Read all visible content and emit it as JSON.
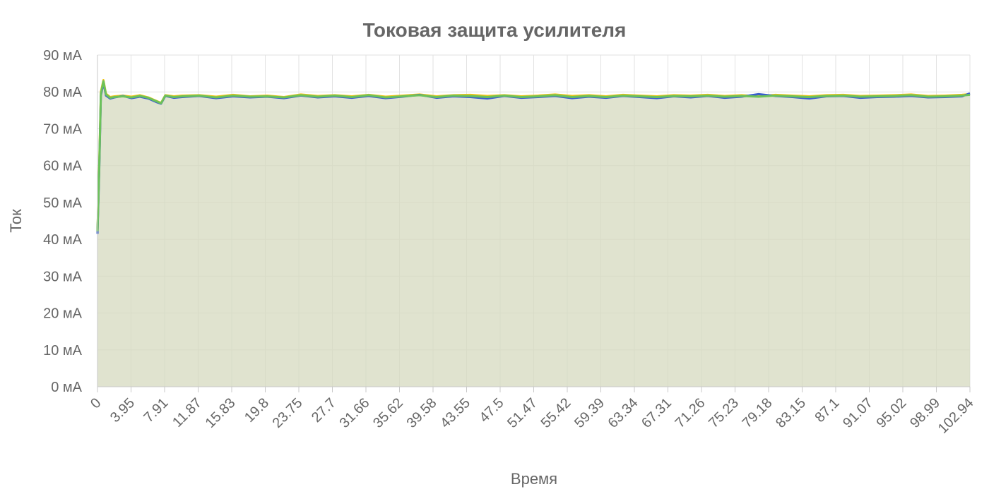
{
  "chart_data": {
    "type": "area",
    "title": "Токовая защита усилителя",
    "xlabel": "Время",
    "ylabel": "Ток",
    "y_unit_suffix": " мА",
    "ylim": [
      0,
      90
    ],
    "y_ticks": [
      0,
      10,
      20,
      30,
      40,
      50,
      60,
      70,
      80,
      90
    ],
    "xlim": [
      0,
      102.94
    ],
    "x_tick_labels": [
      "0",
      "3.95",
      "7.91",
      "11.87",
      "15.83",
      "19.8",
      "23.75",
      "27.7",
      "31.66",
      "35.62",
      "39.58",
      "43.55",
      "47.5",
      "51.47",
      "55.42",
      "59.39",
      "63.34",
      "67.31",
      "71.26",
      "75.23",
      "79.18",
      "83.15",
      "87.1",
      "91.07",
      "95.02",
      "98.99",
      "102.94"
    ],
    "grid": true,
    "legend": "none",
    "fill_color": "#d6d9bf",
    "series": [
      {
        "color": "#f2c417",
        "x": [
          0,
          0.2,
          0.4,
          0.7,
          1,
          1.5,
          2,
          3,
          4,
          5,
          6,
          7,
          7.5,
          8,
          9,
          10,
          12,
          14,
          16,
          18,
          20,
          22,
          24,
          26,
          28,
          30,
          32,
          34,
          36,
          38,
          40,
          42,
          44,
          46,
          48,
          50,
          52,
          54,
          56,
          58,
          60,
          62,
          64,
          66,
          68,
          70,
          72,
          74,
          76,
          78,
          80,
          82,
          84,
          86,
          88,
          90,
          92,
          94,
          96,
          98,
          100,
          102,
          102.94
        ],
        "values": [
          42,
          60,
          80,
          83.2,
          79.5,
          78.6,
          78.8,
          79.0,
          78.7,
          79.1,
          78.5,
          77.5,
          77.0,
          79.1,
          78.8,
          79.0,
          79.1,
          78.7,
          79.2,
          78.8,
          79.0,
          78.6,
          79.3,
          78.9,
          79.1,
          78.8,
          79.2,
          78.7,
          79.0,
          79.3,
          78.8,
          79.1,
          79.2,
          78.9,
          79.1,
          78.8,
          79.0,
          79.3,
          78.9,
          79.1,
          78.8,
          79.2,
          79.0,
          78.8,
          79.1,
          79.0,
          79.2,
          78.9,
          79.1,
          78.8,
          79.2,
          79.0,
          78.8,
          79.1,
          79.2,
          78.9,
          79.0,
          79.1,
          79.3,
          78.9,
          79.0,
          79.2,
          79.4
        ]
      },
      {
        "color": "#3a5fcd",
        "x": [
          0,
          0.2,
          0.4,
          0.7,
          1,
          1.5,
          2,
          3,
          4,
          5,
          6,
          7,
          7.5,
          8,
          9,
          10,
          12,
          14,
          16,
          18,
          20,
          22,
          24,
          26,
          28,
          30,
          32,
          34,
          36,
          38,
          40,
          42,
          44,
          46,
          48,
          50,
          52,
          54,
          56,
          58,
          60,
          62,
          64,
          66,
          68,
          70,
          72,
          74,
          76,
          78,
          80,
          82,
          84,
          86,
          88,
          90,
          92,
          94,
          96,
          98,
          100,
          102,
          102.94
        ],
        "values": [
          41.5,
          58,
          79,
          82.5,
          79.0,
          78.2,
          78.5,
          78.9,
          78.3,
          78.7,
          78.2,
          77.2,
          76.8,
          78.9,
          78.4,
          78.6,
          78.9,
          78.3,
          78.8,
          78.5,
          78.7,
          78.3,
          79.0,
          78.5,
          78.8,
          78.4,
          78.9,
          78.3,
          78.7,
          79.2,
          78.4,
          78.8,
          78.6,
          78.2,
          78.9,
          78.4,
          78.6,
          78.9,
          78.3,
          78.7,
          78.4,
          78.9,
          78.6,
          78.3,
          78.8,
          78.5,
          78.9,
          78.4,
          78.7,
          79.4,
          78.9,
          78.6,
          78.2,
          78.8,
          78.9,
          78.4,
          78.6,
          78.7,
          78.9,
          78.5,
          78.6,
          78.8,
          79.6
        ]
      },
      {
        "color": "#6cc25a",
        "x": [
          0,
          0.2,
          0.4,
          0.7,
          1,
          1.5,
          2,
          3,
          4,
          5,
          6,
          7,
          7.5,
          8,
          9,
          10,
          12,
          14,
          16,
          18,
          20,
          22,
          24,
          26,
          28,
          30,
          32,
          34,
          36,
          38,
          40,
          42,
          44,
          46,
          48,
          50,
          52,
          54,
          56,
          58,
          60,
          62,
          64,
          66,
          68,
          70,
          72,
          74,
          76,
          78,
          80,
          82,
          84,
          86,
          88,
          90,
          92,
          94,
          96,
          98,
          100,
          102,
          102.94
        ],
        "values": [
          42.2,
          59,
          79.5,
          82.9,
          79.3,
          78.4,
          78.6,
          78.8,
          78.5,
          78.9,
          78.4,
          77.4,
          76.9,
          79.0,
          78.6,
          78.8,
          79.0,
          78.5,
          79.0,
          78.7,
          78.8,
          78.5,
          79.1,
          78.7,
          79.0,
          78.6,
          79.1,
          78.5,
          78.8,
          79.1,
          78.6,
          79.0,
          78.9,
          78.6,
          79.0,
          78.6,
          78.8,
          79.1,
          78.6,
          78.9,
          78.6,
          79.0,
          78.8,
          78.6,
          78.9,
          78.8,
          79.0,
          78.7,
          78.9,
          78.7,
          79.0,
          78.8,
          78.6,
          78.9,
          79.0,
          78.7,
          78.8,
          78.9,
          79.1,
          78.7,
          78.8,
          79.0,
          79.2
        ]
      }
    ]
  }
}
